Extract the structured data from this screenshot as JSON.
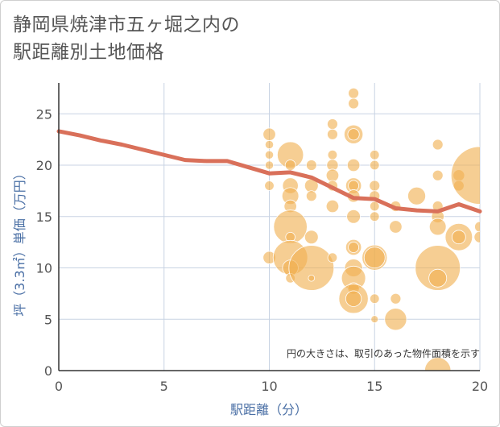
{
  "title_line1": "静岡県焼津市五ヶ堀之内の",
  "title_line2": "駅距離別土地価格",
  "chart_data": {
    "type": "scatter",
    "xlabel": "駅距離（分）",
    "ylabel": "坪（3.3㎡）単価（万円）",
    "xlim": [
      0,
      20
    ],
    "ylim": [
      0,
      28
    ],
    "x_ticks": [
      "0",
      "5",
      "10",
      "15",
      "20"
    ],
    "y_ticks": [
      "0",
      "5",
      "10",
      "15",
      "20",
      "25"
    ],
    "grid": true,
    "note": "円の大きさは、取引のあった物件面積を示す",
    "colors": {
      "bubble": "#f0b050",
      "line": "#d9705a",
      "grid": "#c8d3e3",
      "axis": "#333333"
    },
    "trend_line": {
      "x": [
        0,
        1,
        2,
        3,
        4,
        5,
        6,
        7,
        8,
        9,
        10,
        11,
        12,
        13,
        14,
        15,
        16,
        17,
        18,
        19,
        20
      ],
      "y": [
        23.3,
        22.9,
        22.4,
        22.0,
        21.5,
        21.0,
        20.5,
        20.4,
        20.4,
        19.8,
        19.2,
        19.3,
        18.8,
        17.8,
        16.8,
        16.7,
        15.8,
        15.6,
        15.5,
        16.2,
        15.5
      ]
    },
    "points": [
      {
        "x": 10,
        "y": 23,
        "s": 1.2
      },
      {
        "x": 10,
        "y": 22,
        "s": 0.8
      },
      {
        "x": 10,
        "y": 21,
        "s": 0.8
      },
      {
        "x": 10,
        "y": 20,
        "s": 0.8
      },
      {
        "x": 10,
        "y": 18,
        "s": 0.9
      },
      {
        "x": 10,
        "y": 11,
        "s": 1.2
      },
      {
        "x": 11,
        "y": 21,
        "s": 2.5
      },
      {
        "x": 11,
        "y": 20,
        "s": 1.0
      },
      {
        "x": 11,
        "y": 18,
        "s": 1.5
      },
      {
        "x": 11,
        "y": 17,
        "s": 1.6
      },
      {
        "x": 11,
        "y": 16,
        "s": 1.2
      },
      {
        "x": 11,
        "y": 14,
        "s": 3.2
      },
      {
        "x": 11,
        "y": 13,
        "s": 0.9
      },
      {
        "x": 11,
        "y": 11,
        "s": 3.3
      },
      {
        "x": 11,
        "y": 10,
        "s": 1.5
      },
      {
        "x": 11,
        "y": 9,
        "s": 0.9
      },
      {
        "x": 12,
        "y": 20,
        "s": 1.0
      },
      {
        "x": 12,
        "y": 18,
        "s": 1.3
      },
      {
        "x": 12,
        "y": 17,
        "s": 1.0
      },
      {
        "x": 12,
        "y": 13,
        "s": 1.3
      },
      {
        "x": 12,
        "y": 10,
        "s": 4.3
      },
      {
        "x": 12,
        "y": 9,
        "s": 0.6
      },
      {
        "x": 13,
        "y": 24,
        "s": 1.0
      },
      {
        "x": 13,
        "y": 23,
        "s": 1.0
      },
      {
        "x": 13,
        "y": 21,
        "s": 0.9
      },
      {
        "x": 13,
        "y": 20,
        "s": 1.1
      },
      {
        "x": 13,
        "y": 19,
        "s": 1.2
      },
      {
        "x": 13,
        "y": 18,
        "s": 1.0
      },
      {
        "x": 13,
        "y": 16,
        "s": 1.2
      },
      {
        "x": 13,
        "y": 11,
        "s": 0.9
      },
      {
        "x": 14,
        "y": 27,
        "s": 1.0
      },
      {
        "x": 14,
        "y": 26,
        "s": 1.0
      },
      {
        "x": 14,
        "y": 23,
        "s": 1.8
      },
      {
        "x": 14,
        "y": 23,
        "s": 1.1
      },
      {
        "x": 14,
        "y": 20,
        "s": 1.2
      },
      {
        "x": 14,
        "y": 18,
        "s": 1.5
      },
      {
        "x": 14,
        "y": 18,
        "s": 1.0
      },
      {
        "x": 14,
        "y": 17,
        "s": 1.2
      },
      {
        "x": 14,
        "y": 15,
        "s": 1.3
      },
      {
        "x": 14,
        "y": 12,
        "s": 1.5
      },
      {
        "x": 14,
        "y": 12,
        "s": 1.0
      },
      {
        "x": 14,
        "y": 10,
        "s": 1.7
      },
      {
        "x": 14,
        "y": 9,
        "s": 2.3
      },
      {
        "x": 14,
        "y": 8,
        "s": 1.1
      },
      {
        "x": 14,
        "y": 7,
        "s": 2.8
      },
      {
        "x": 14,
        "y": 7,
        "s": 1.5
      },
      {
        "x": 15,
        "y": 21,
        "s": 0.9
      },
      {
        "x": 15,
        "y": 20,
        "s": 0.9
      },
      {
        "x": 15,
        "y": 18,
        "s": 1.0
      },
      {
        "x": 15,
        "y": 17,
        "s": 1.0
      },
      {
        "x": 15,
        "y": 16,
        "s": 0.9
      },
      {
        "x": 15,
        "y": 15,
        "s": 0.9
      },
      {
        "x": 15,
        "y": 11,
        "s": 2.4
      },
      {
        "x": 15,
        "y": 11,
        "s": 2.0
      },
      {
        "x": 15,
        "y": 7,
        "s": 0.9
      },
      {
        "x": 15,
        "y": 5,
        "s": 0.7
      },
      {
        "x": 16,
        "y": 16,
        "s": 1.0
      },
      {
        "x": 16,
        "y": 14,
        "s": 1.2
      },
      {
        "x": 16,
        "y": 7,
        "s": 1.0
      },
      {
        "x": 16,
        "y": 5,
        "s": 2.1
      },
      {
        "x": 17,
        "y": 17,
        "s": 1.7
      },
      {
        "x": 18,
        "y": 22,
        "s": 1.0
      },
      {
        "x": 18,
        "y": 19,
        "s": 1.0
      },
      {
        "x": 18,
        "y": 16,
        "s": 1.0
      },
      {
        "x": 18,
        "y": 15,
        "s": 1.2
      },
      {
        "x": 18,
        "y": 14,
        "s": 1.6
      },
      {
        "x": 18,
        "y": 10,
        "s": 4.3
      },
      {
        "x": 18,
        "y": 9,
        "s": 1.7
      },
      {
        "x": 18,
        "y": 0,
        "s": 2.5
      },
      {
        "x": 19,
        "y": 19,
        "s": 1.1
      },
      {
        "x": 19,
        "y": 18,
        "s": 1.0
      },
      {
        "x": 19,
        "y": 13,
        "s": 2.6
      },
      {
        "x": 19,
        "y": 13,
        "s": 1.3
      },
      {
        "x": 20,
        "y": 19,
        "s": 5.5
      },
      {
        "x": 20,
        "y": 14,
        "s": 1.0
      },
      {
        "x": 20,
        "y": 13,
        "s": 1.1
      }
    ]
  }
}
